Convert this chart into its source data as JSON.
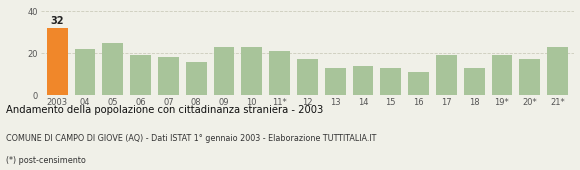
{
  "categories": [
    "2003",
    "04",
    "05",
    "06",
    "07",
    "08",
    "09",
    "10",
    "11*",
    "12",
    "13",
    "14",
    "15",
    "16",
    "17",
    "18",
    "19*",
    "20*",
    "21*"
  ],
  "values": [
    32,
    22,
    25,
    19,
    18,
    16,
    23,
    23,
    21,
    17,
    13,
    14,
    13,
    11,
    19,
    13,
    19,
    17,
    23
  ],
  "bar_color_first": "#f0872a",
  "bar_color_rest": "#a8c49a",
  "background_color": "#f0f0e8",
  "plot_bg_color": "#f0f0e8",
  "title": "Andamento della popolazione con cittadinanza straniera - 2003",
  "subtitle": "COMUNE DI CAMPO DI GIOVE (AQ) - Dati ISTAT 1° gennaio 2003 - Elaborazione TUTTITALIA.IT",
  "footnote": "(*) post-censimento",
  "ylim": [
    0,
    42
  ],
  "yticks": [
    0,
    20,
    40
  ],
  "value_label": "32",
  "grid_color": "#ccccbb"
}
